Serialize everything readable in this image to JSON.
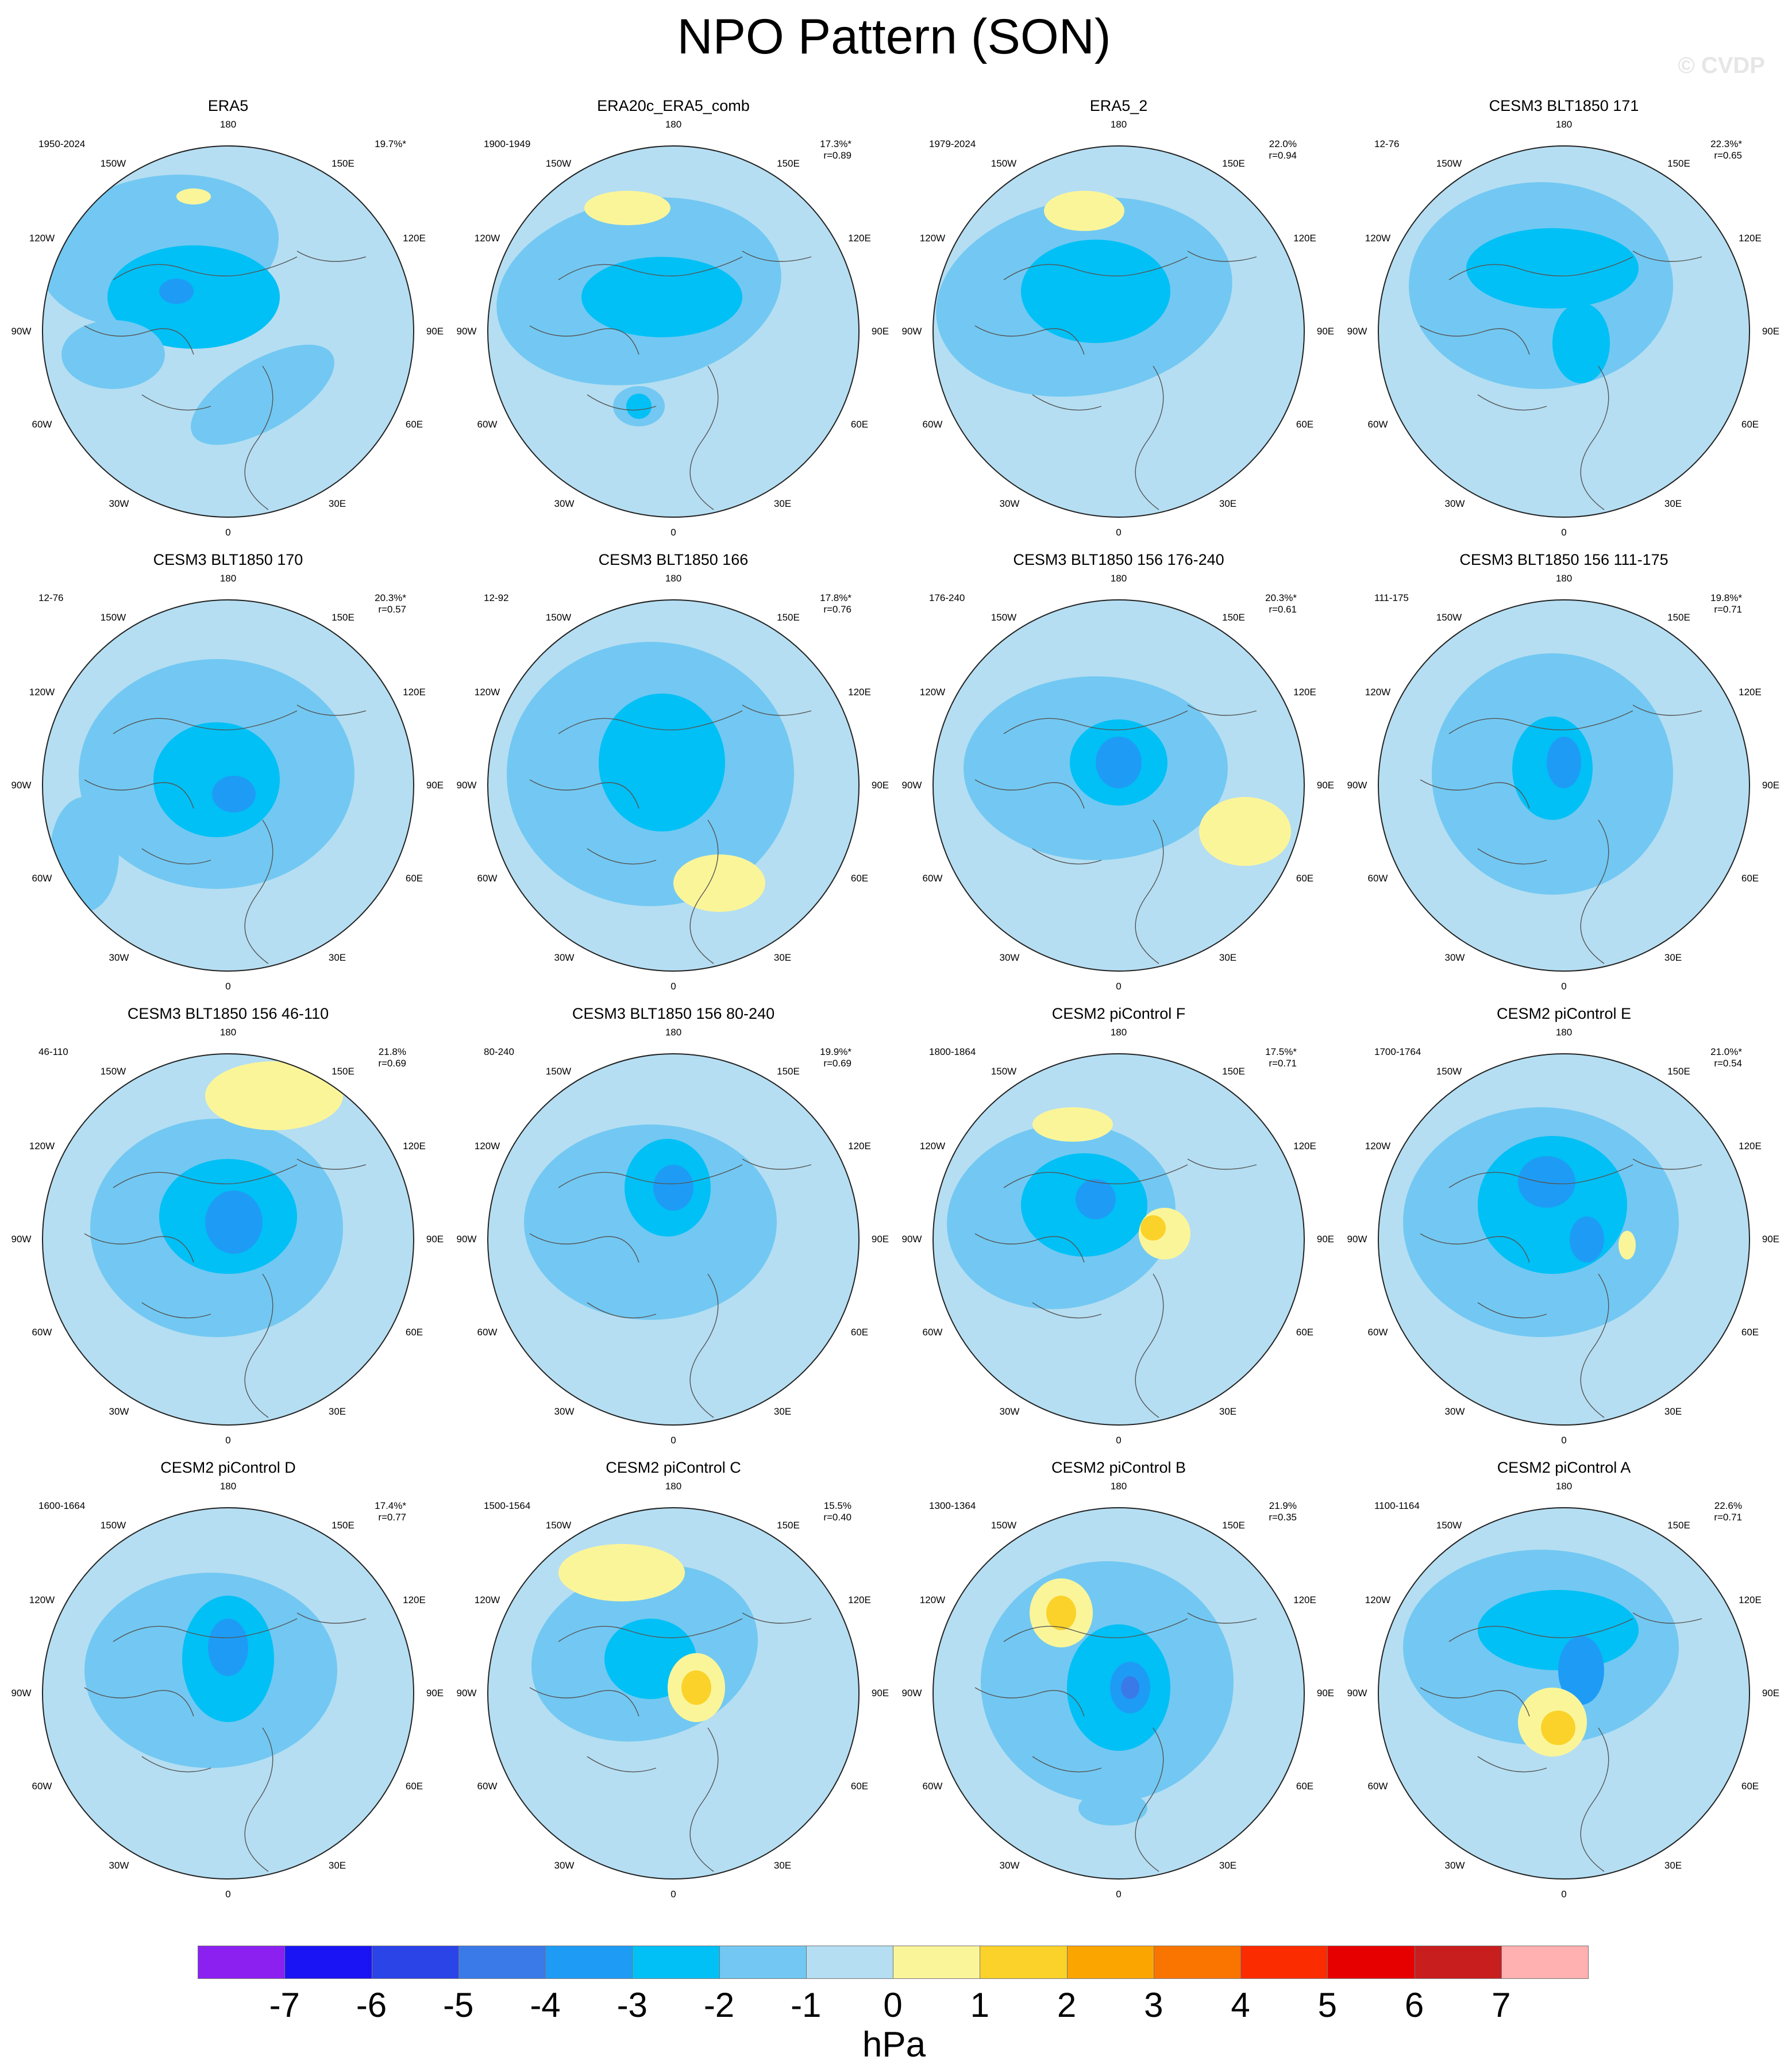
{
  "title": "NPO Pattern (SON)",
  "watermark": "© CVDP",
  "colorbar": {
    "labels": [
      "-7",
      "-6",
      "-5",
      "-4",
      "-3",
      "-2",
      "-1",
      "0",
      "1",
      "2",
      "3",
      "4",
      "5",
      "6",
      "7"
    ],
    "colors": [
      "#8b20f0",
      "#1a14f5",
      "#2a44e8",
      "#3a7ae8",
      "#1e9cf5",
      "#00c0f5",
      "#72c8f2",
      "#b5def2",
      "#fbf59a",
      "#fad22a",
      "#faa500",
      "#fa7400",
      "#fa2c00",
      "#e60000",
      "#c81e1e",
      "#ffb0b0"
    ],
    "unit": "hPa"
  },
  "lon_labels": [
    "180",
    "150E",
    "120E",
    "90E",
    "60E",
    "30E",
    "0",
    "30W",
    "60W",
    "90W",
    "120W",
    "150W"
  ],
  "chart_data": {
    "type": "map",
    "projection": "north-polar-stereographic",
    "variable": "NPO pattern (sea level pressure anomaly)",
    "season": "SON",
    "units": "hPa",
    "contour_levels": [
      -7,
      -6,
      -5,
      -4,
      -3,
      -2,
      -1,
      0,
      1,
      2,
      3,
      4,
      5,
      6,
      7
    ],
    "panels": [
      {
        "name": "ERA5",
        "period": "1950-2024",
        "pct": "19.7%*",
        "r": ""
      },
      {
        "name": "ERA20c_ERA5_comb",
        "period": "1900-1949",
        "pct": "17.3%*",
        "r": "r=0.89"
      },
      {
        "name": "ERA5_2",
        "period": "1979-2024",
        "pct": "22.0%",
        "r": "r=0.94"
      },
      {
        "name": "CESM3 BLT1850 171",
        "period": "12-76",
        "pct": "22.3%*",
        "r": "r=0.65"
      },
      {
        "name": "CESM3 BLT1850 170",
        "period": "12-76",
        "pct": "20.3%*",
        "r": "r=0.57"
      },
      {
        "name": "CESM3 BLT1850 166",
        "period": "12-92",
        "pct": "17.8%*",
        "r": "r=0.76"
      },
      {
        "name": "CESM3 BLT1850 156 176-240",
        "period": "176-240",
        "pct": "20.3%*",
        "r": "r=0.61"
      },
      {
        "name": "CESM3 BLT1850 156 111-175",
        "period": "111-175",
        "pct": "19.8%*",
        "r": "r=0.71"
      },
      {
        "name": "CESM3 BLT1850 156 46-110",
        "period": "46-110",
        "pct": "21.8%",
        "r": "r=0.69"
      },
      {
        "name": "CESM3 BLT1850 156 80-240",
        "period": "80-240",
        "pct": "19.9%*",
        "r": "r=0.69"
      },
      {
        "name": "CESM2 piControl F",
        "period": "1800-1864",
        "pct": "17.5%*",
        "r": "r=0.71"
      },
      {
        "name": "CESM2 piControl E",
        "period": "1700-1764",
        "pct": "21.0%*",
        "r": "r=0.54"
      },
      {
        "name": "CESM2 piControl D",
        "period": "1600-1664",
        "pct": "17.4%*",
        "r": "r=0.77"
      },
      {
        "name": "CESM2 piControl C",
        "period": "1500-1564",
        "pct": "15.5%",
        "r": "r=0.40"
      },
      {
        "name": "CESM2 piControl B",
        "period": "1300-1364",
        "pct": "21.9%",
        "r": "r=0.35"
      },
      {
        "name": "CESM2 piControl A",
        "period": "1100-1164",
        "pct": "22.6%",
        "r": "r=0.71"
      }
    ]
  }
}
